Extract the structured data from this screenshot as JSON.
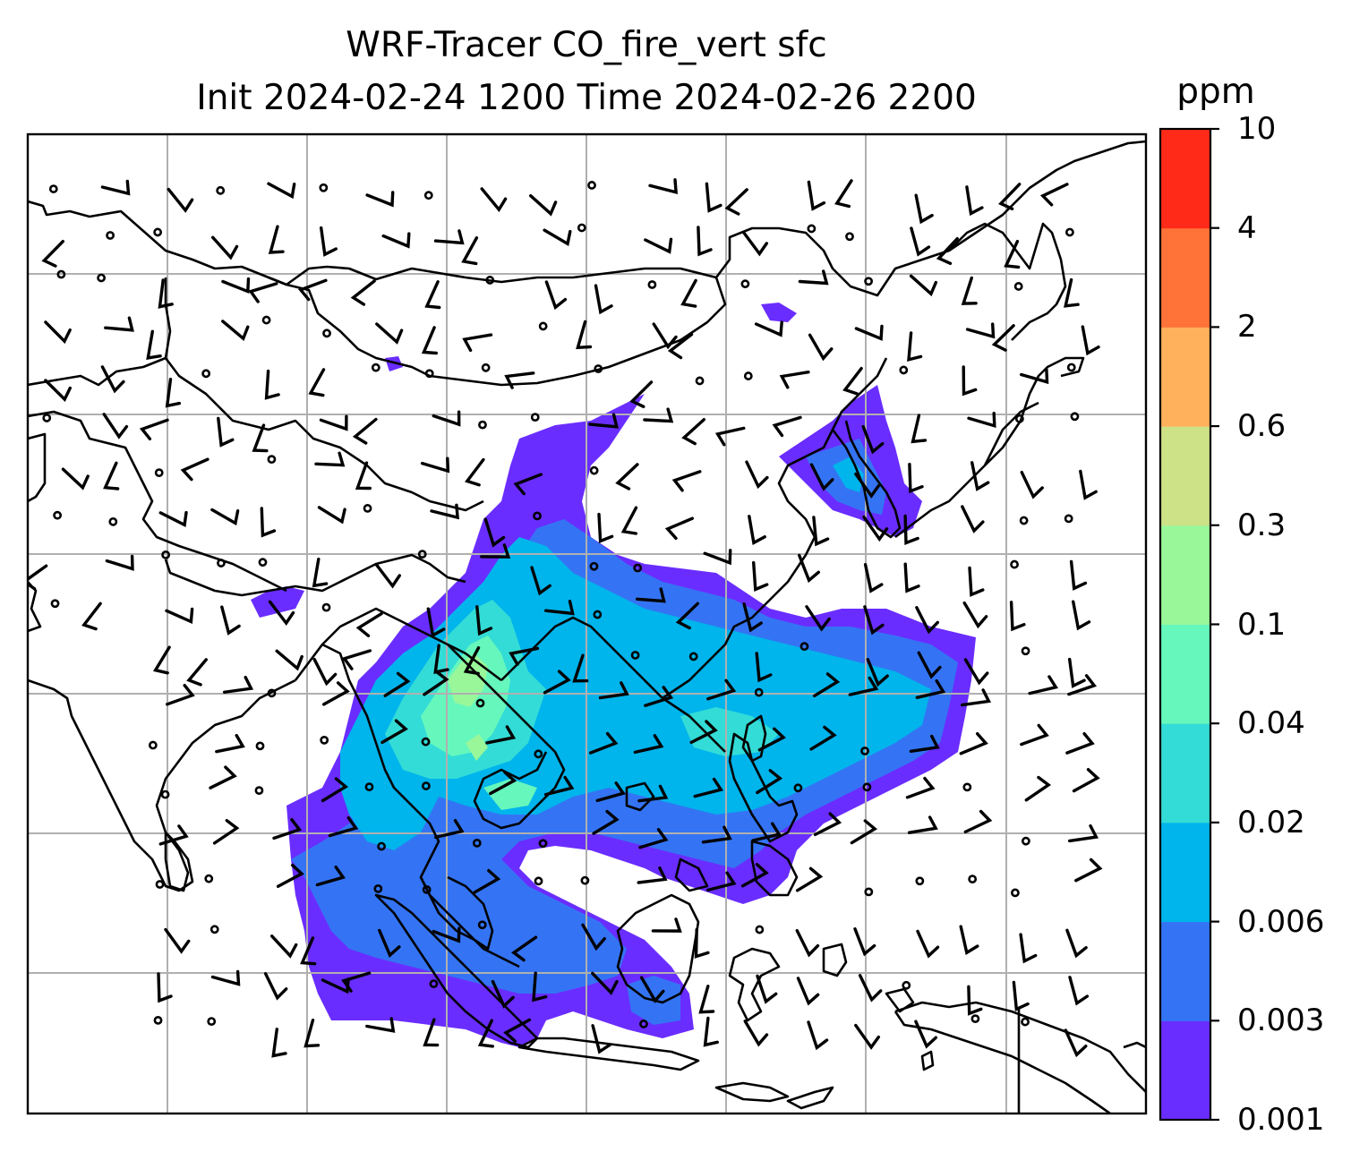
{
  "title": {
    "line1": "WRF-Tracer CO_fire_vert sfc",
    "line2": "Init 2024-02-24 1200 Time 2024-02-26 2200"
  },
  "colorbar": {
    "unit": "ppm",
    "levels": [
      "0.001",
      "0.003",
      "0.006",
      "0.02",
      "0.04",
      "0.1",
      "0.3",
      "0.6",
      "2",
      "4",
      "10"
    ],
    "colors": [
      "#6a2dff",
      "#3474f4",
      "#00b4ec",
      "#33dcd6",
      "#66f7bd",
      "#99f79a",
      "#cde287",
      "#ffb15c",
      "#ff7238",
      "#ff2a18"
    ]
  },
  "map": {
    "layers": [
      "coastlines",
      "country-borders",
      "gridlines",
      "tracer-contours",
      "wind-barbs"
    ],
    "gridline_color": "#b0b0b0",
    "land_line_color": "#000000"
  }
}
